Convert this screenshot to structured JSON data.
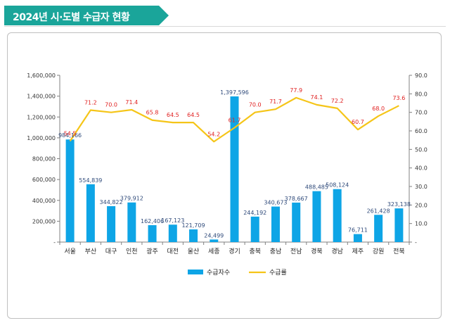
{
  "page": {
    "title": "2024년 시·도별 수급자 현황"
  },
  "colors": {
    "banner": "#1aa59a",
    "bar": "#0ea5e6",
    "line": "#f5c518",
    "line_label": "#e02020",
    "bar_label": "#2f4a7a"
  },
  "chart_data": {
    "type": "bar",
    "title": "",
    "categories": [
      "서울",
      "부산",
      "대구",
      "인천",
      "광주",
      "대전",
      "울산",
      "세종",
      "경기",
      "충북",
      "충남",
      "전남",
      "경북",
      "경남",
      "제주",
      "강원",
      "전북"
    ],
    "series": [
      {
        "name": "수급자수",
        "type": "bar",
        "axis": "left",
        "values": [
          984166,
          554839,
          344822,
          379912,
          162406,
          167123,
          121709,
          24499,
          1397596,
          244192,
          340673,
          378667,
          488485,
          508124,
          76711,
          261428,
          323138
        ],
        "labels": [
          "984,166",
          "554,839",
          "344,822",
          "379,912",
          "162,406",
          "167,123",
          "121,709",
          "24,499",
          "1,397,596",
          "244,192",
          "340,673",
          "378,667",
          "488,485",
          "508,124",
          "76,711",
          "261,428",
          "323,138"
        ]
      },
      {
        "name": "수급률",
        "type": "line",
        "axis": "right",
        "values": [
          54.5,
          71.2,
          70.0,
          71.4,
          65.8,
          64.5,
          64.5,
          54.2,
          61.7,
          70.0,
          71.7,
          77.9,
          74.1,
          72.2,
          60.7,
          68.0,
          73.6
        ],
        "labels": [
          "54.5",
          "71.2",
          "70.0",
          "71.4",
          "65.8",
          "64.5",
          "64.5",
          "54.2",
          "61.7",
          "70.0",
          "71.7",
          "77.9",
          "74.1",
          "72.2",
          "60.7",
          "68.0",
          "73.6"
        ]
      }
    ],
    "y_left": {
      "min": 0,
      "max": 1600000,
      "ticks": [
        "-",
        "200,000",
        "400,000",
        "600,000",
        "800,000",
        "1,000,000",
        "1,200,000",
        "1,400,000",
        "1,600,000"
      ]
    },
    "y_right": {
      "min": 0,
      "max": 90,
      "ticks": [
        "-",
        "10.0",
        "20.0",
        "30.0",
        "40.0",
        "50.0",
        "60.0",
        "70.0",
        "80.0",
        "90.0"
      ]
    },
    "grid": false,
    "legend": {
      "position": "bottom"
    }
  }
}
